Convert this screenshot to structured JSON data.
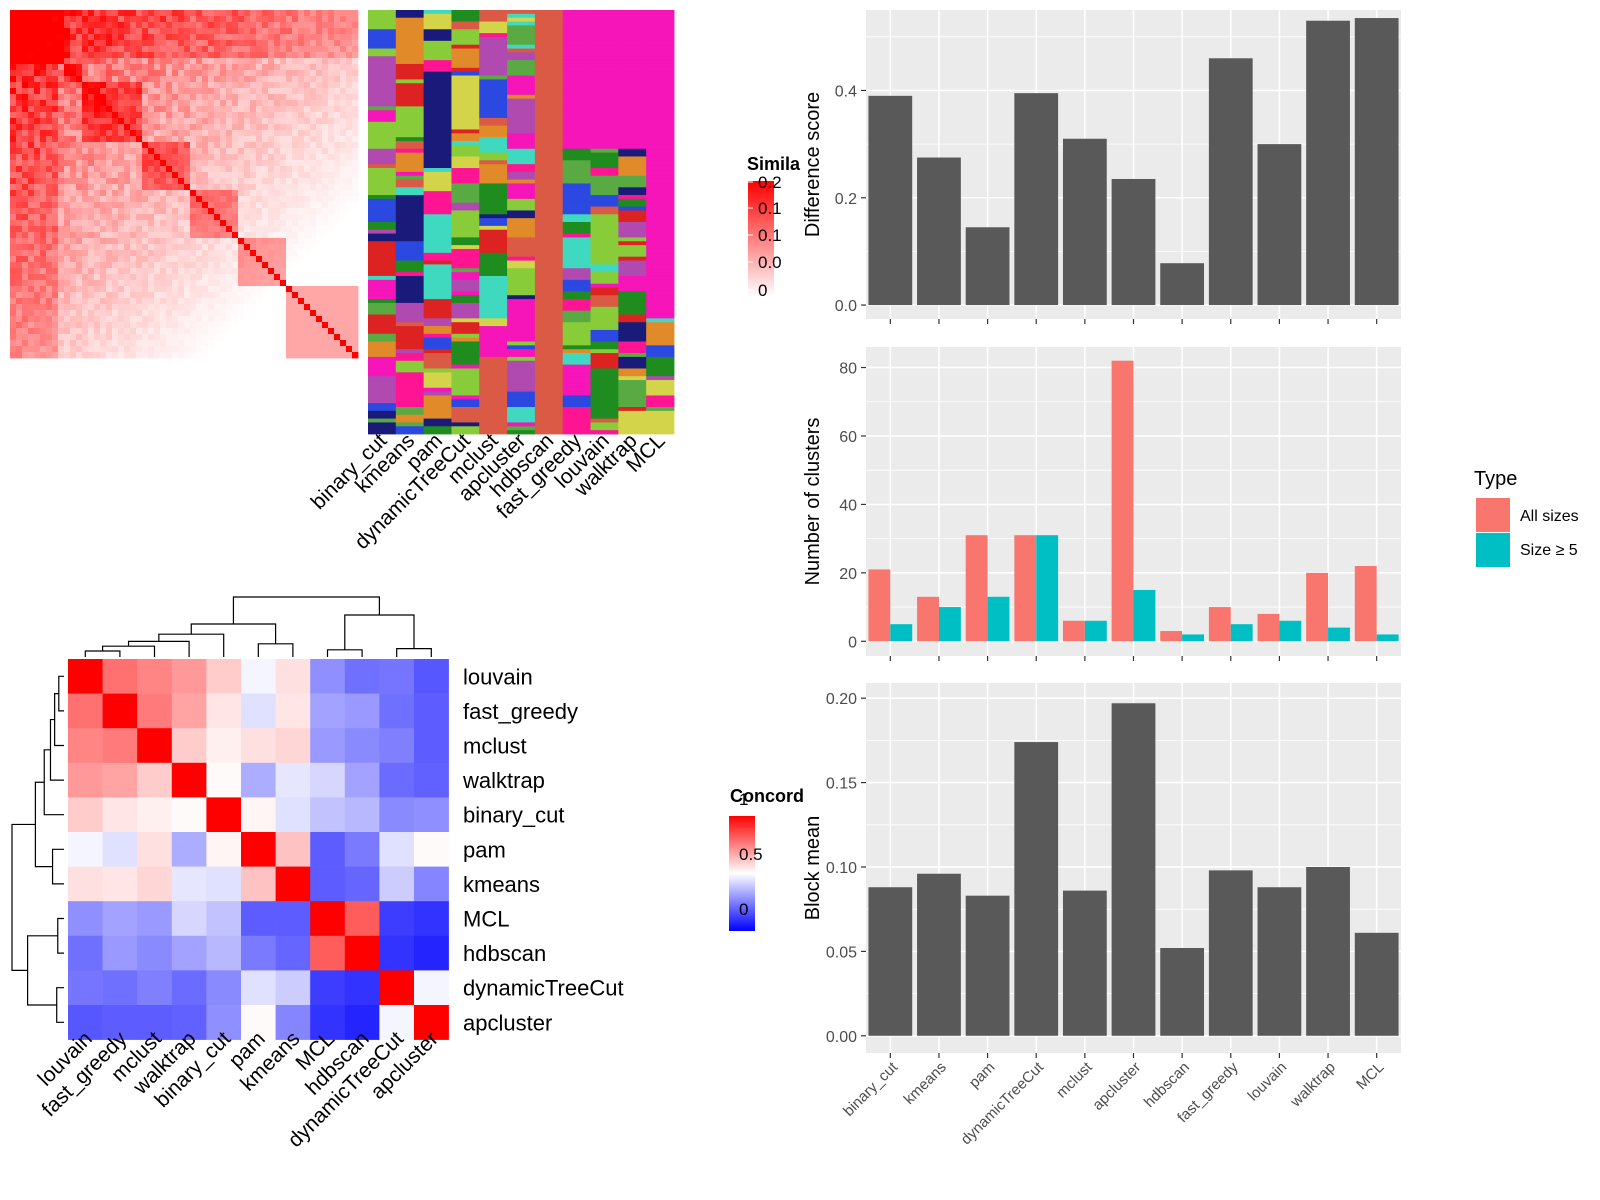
{
  "methods_order": [
    "binary_cut",
    "kmeans",
    "pam",
    "dynamicTreeCut",
    "mclust",
    "apcluster",
    "hdbscan",
    "fast_greedy",
    "louvain",
    "walktrap",
    "MCL"
  ],
  "heatmap_order": [
    "louvain",
    "fast_greedy",
    "mclust",
    "walktrap",
    "binary_cut",
    "pam",
    "kmeans",
    "MCL",
    "hdbscan",
    "dynamicTreeCut",
    "apcluster"
  ],
  "similarity_legend": {
    "title": "Simila",
    "ticks": [
      "0.2",
      "0.1",
      "0.1",
      "0.0",
      "0"
    ]
  },
  "concordance_legend": {
    "title": "Concord",
    "ticks": [
      "1",
      "0.5",
      "0"
    ]
  },
  "type_legend": {
    "title": "Type",
    "items": [
      {
        "label": "All sizes",
        "color": "#F8766D"
      },
      {
        "label": "Size ≥ 5",
        "color": "#00BFC4"
      }
    ]
  },
  "colors": {
    "dark_bar": "#595959",
    "panel_bg": "#EBEBEB",
    "red": "#FF0000",
    "blue": "#0000FF",
    "magenta": "#F615B8"
  },
  "chart_data": [
    {
      "type": "heatmap",
      "title": "",
      "description_only": false,
      "categories": [
        "louvain",
        "fast_greedy",
        "mclust",
        "walktrap",
        "binary_cut",
        "pam",
        "kmeans",
        "MCL",
        "hdbscan",
        "dynamicTreeCut",
        "apcluster"
      ],
      "values": [
        [
          1.0,
          0.78,
          0.74,
          0.7,
          0.6,
          0.48,
          0.56,
          0.28,
          0.22,
          0.23,
          0.17
        ],
        [
          0.78,
          1.0,
          0.76,
          0.68,
          0.55,
          0.44,
          0.55,
          0.32,
          0.3,
          0.22,
          0.18
        ],
        [
          0.74,
          0.76,
          1.0,
          0.6,
          0.53,
          0.56,
          0.58,
          0.3,
          0.27,
          0.25,
          0.18
        ],
        [
          0.7,
          0.68,
          0.6,
          1.0,
          0.51,
          0.34,
          0.45,
          0.42,
          0.32,
          0.21,
          0.19
        ],
        [
          0.6,
          0.55,
          0.53,
          0.51,
          1.0,
          0.52,
          0.44,
          0.38,
          0.36,
          0.27,
          0.28
        ],
        [
          0.48,
          0.44,
          0.56,
          0.34,
          0.52,
          1.0,
          0.62,
          0.18,
          0.24,
          0.44,
          0.51
        ],
        [
          0.56,
          0.55,
          0.58,
          0.45,
          0.44,
          0.62,
          1.0,
          0.18,
          0.2,
          0.4,
          0.26
        ],
        [
          0.28,
          0.32,
          0.3,
          0.42,
          0.38,
          0.18,
          0.18,
          1.0,
          0.82,
          0.12,
          0.1
        ],
        [
          0.22,
          0.3,
          0.27,
          0.32,
          0.36,
          0.24,
          0.2,
          0.82,
          1.0,
          0.1,
          0.07
        ],
        [
          0.23,
          0.22,
          0.25,
          0.21,
          0.27,
          0.44,
          0.4,
          0.12,
          0.1,
          1.0,
          0.48
        ],
        [
          0.17,
          0.18,
          0.18,
          0.19,
          0.28,
          0.51,
          0.26,
          0.1,
          0.07,
          0.48,
          1.0
        ]
      ],
      "legend_title": "Concord",
      "range": [
        0,
        1
      ]
    },
    {
      "type": "bar",
      "categories": [
        "binary_cut",
        "kmeans",
        "pam",
        "dynamicTreeCut",
        "mclust",
        "apcluster",
        "hdbscan",
        "fast_greedy",
        "louvain",
        "walktrap",
        "MCL"
      ],
      "values": [
        0.39,
        0.275,
        0.145,
        0.395,
        0.31,
        0.235,
        0.078,
        0.46,
        0.3,
        0.53,
        0.535
      ],
      "ylabel": "Difference score",
      "ylim": [
        0,
        0.55
      ],
      "yticks": [
        0.0,
        0.2,
        0.4
      ],
      "ytick_labels": [
        "0.0",
        "0.2",
        "0.4"
      ]
    },
    {
      "type": "bar",
      "categories": [
        "binary_cut",
        "kmeans",
        "pam",
        "dynamicTreeCut",
        "mclust",
        "apcluster",
        "hdbscan",
        "fast_greedy",
        "louvain",
        "walktrap",
        "MCL"
      ],
      "series": [
        {
          "name": "All sizes",
          "values": [
            21,
            13,
            31,
            31,
            6,
            82,
            3,
            10,
            8,
            20,
            22
          ]
        },
        {
          "name": "Size ≥ 5",
          "values": [
            5,
            10,
            13,
            31,
            6,
            15,
            2,
            5,
            6,
            4,
            2
          ]
        }
      ],
      "ylabel": "Number of clusters",
      "ylim": [
        0,
        86
      ],
      "yticks": [
        0,
        20,
        40,
        60,
        80
      ],
      "ytick_labels": [
        "0",
        "20",
        "40",
        "60",
        "80"
      ],
      "legend": "right"
    },
    {
      "type": "bar",
      "categories": [
        "binary_cut",
        "kmeans",
        "pam",
        "dynamicTreeCut",
        "mclust",
        "apcluster",
        "hdbscan",
        "fast_greedy",
        "louvain",
        "walktrap",
        "MCL"
      ],
      "values": [
        0.088,
        0.096,
        0.083,
        0.174,
        0.086,
        0.197,
        0.052,
        0.098,
        0.088,
        0.1,
        0.061
      ],
      "ylabel": "Block mean",
      "ylim": [
        0,
        0.205
      ],
      "yticks": [
        0,
        0.05,
        0.1,
        0.15,
        0.2
      ],
      "ytick_labels": [
        "0.00",
        "0.05",
        "0.10",
        "0.15",
        "0.20"
      ]
    }
  ]
}
